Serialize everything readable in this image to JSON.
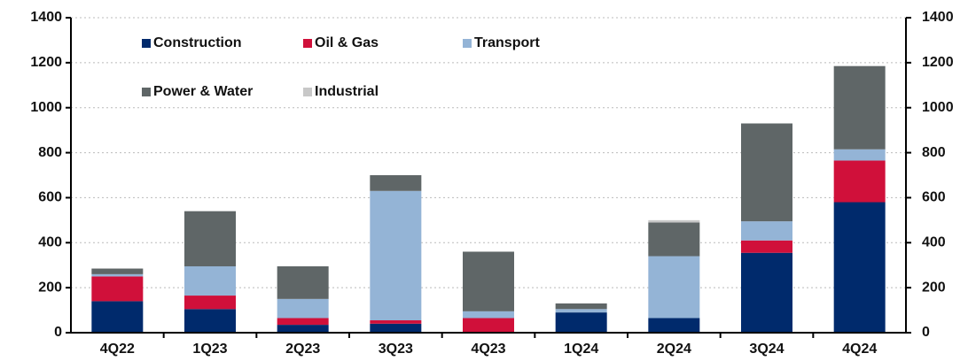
{
  "chart_data": {
    "type": "stacked_bar",
    "categories": [
      "4Q22",
      "1Q23",
      "2Q23",
      "3Q23",
      "4Q23",
      "1Q24",
      "2Q24",
      "3Q24",
      "4Q24"
    ],
    "series": [
      {
        "name": "Construction",
        "color": "#002a6c",
        "values": [
          140,
          105,
          35,
          40,
          0,
          90,
          65,
          355,
          580
        ]
      },
      {
        "name": "Oil & Gas",
        "color": "#d0103a",
        "values": [
          110,
          60,
          30,
          15,
          65,
          0,
          0,
          55,
          185
        ]
      },
      {
        "name": "Transport",
        "color": "#94b4d6",
        "values": [
          10,
          130,
          85,
          575,
          30,
          15,
          275,
          85,
          50
        ]
      },
      {
        "name": "Power & Water",
        "color": "#5f6667",
        "values": [
          25,
          245,
          145,
          70,
          265,
          25,
          150,
          435,
          370
        ]
      },
      {
        "name": "Industrial",
        "color": "#c8c8c8",
        "values": [
          0,
          0,
          0,
          0,
          0,
          0,
          10,
          0,
          0
        ]
      }
    ],
    "ylim": [
      0,
      1400
    ],
    "yticks": [
      0,
      200,
      400,
      600,
      800,
      1000,
      1200,
      1400
    ],
    "y2lim": [
      0,
      1400
    ],
    "y2ticks": [
      0,
      200,
      400,
      600,
      800,
      1000,
      1200,
      1400
    ],
    "grid": true
  }
}
